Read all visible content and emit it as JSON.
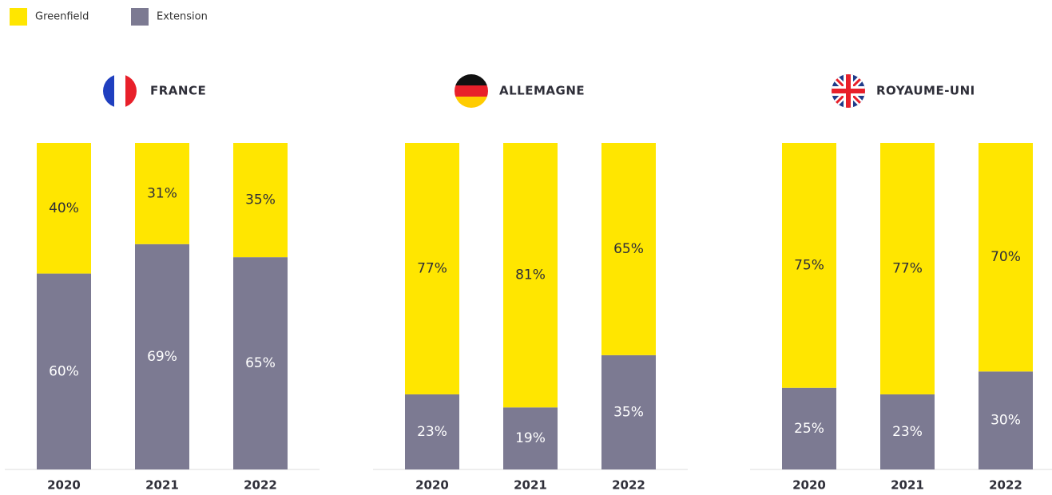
{
  "chart_data": [
    {
      "type": "bar",
      "stacked": true,
      "title": "FRANCE",
      "categories": [
        "2020",
        "2021",
        "2022"
      ],
      "ylim": [
        0,
        100
      ],
      "series": [
        {
          "name": "Extension",
          "color": "#7c7a92",
          "values": [
            60,
            69,
            65
          ],
          "value_labels": [
            "60%",
            "69%",
            "65%"
          ]
        },
        {
          "name": "Greenfield",
          "color": "#ffe600",
          "values": [
            40,
            31,
            35
          ],
          "value_labels": [
            "40%",
            "31%",
            "35%"
          ]
        }
      ]
    },
    {
      "type": "bar",
      "stacked": true,
      "title": "ALLEMAGNE",
      "categories": [
        "2020",
        "2021",
        "2022"
      ],
      "ylim": [
        0,
        100
      ],
      "series": [
        {
          "name": "Extension",
          "color": "#7c7a92",
          "values": [
            23,
            19,
            35
          ],
          "value_labels": [
            "23%",
            "19%",
            "35%"
          ]
        },
        {
          "name": "Greenfield",
          "color": "#ffe600",
          "values": [
            77,
            81,
            65
          ],
          "value_labels": [
            "77%",
            "81%",
            "65%"
          ]
        }
      ]
    },
    {
      "type": "bar",
      "stacked": true,
      "title": "ROYAUME-UNI",
      "categories": [
        "2020",
        "2021",
        "2022"
      ],
      "ylim": [
        0,
        100
      ],
      "series": [
        {
          "name": "Extension",
          "color": "#7c7a92",
          "values": [
            25,
            23,
            30
          ],
          "value_labels": [
            "25%",
            "23%",
            "30%"
          ]
        },
        {
          "name": "Greenfield",
          "color": "#ffe600",
          "values": [
            75,
            77,
            70
          ],
          "value_labels": [
            "75%",
            "77%",
            "70%"
          ]
        }
      ]
    }
  ]
}
